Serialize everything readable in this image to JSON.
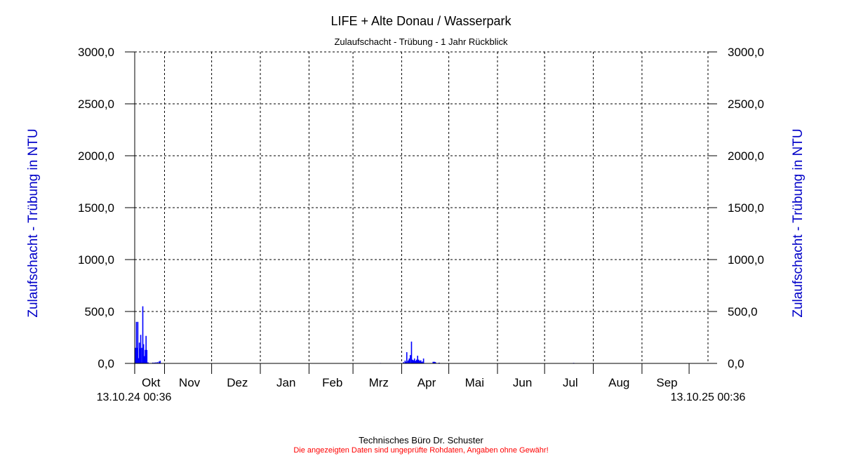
{
  "chart_data": {
    "type": "bar",
    "title": "LIFE + Alte Donau / Wasserpark",
    "subtitle": "Zulaufschacht - Trübung - 1 Jahr Rückblick",
    "ylabel": "Zulaufschacht - Trübung in NTU",
    "ylabel_right": "Zulaufschacht - Trübung in NTU",
    "ylim": [
      0,
      3000
    ],
    "yticks": [
      "0,0",
      "500,0",
      "1000,0",
      "1500,0",
      "2000,0",
      "2500,0",
      "3000,0"
    ],
    "ytick_values": [
      0,
      500,
      1000,
      1500,
      2000,
      2500,
      3000
    ],
    "xlim": [
      "2024-10-13T00:36",
      "2025-10-13T00:36"
    ],
    "x_start_label": "13.10.24 00:36",
    "x_end_label": "13.10.25 00:36",
    "months": [
      {
        "label": "Okt",
        "start": "2024-10-13",
        "end": "2024-11-01"
      },
      {
        "label": "Nov",
        "start": "2024-11-01",
        "end": "2024-12-01"
      },
      {
        "label": "Dez",
        "start": "2024-12-01",
        "end": "2025-01-01"
      },
      {
        "label": "Jan",
        "start": "2025-01-01",
        "end": "2025-02-01"
      },
      {
        "label": "Feb",
        "start": "2025-02-01",
        "end": "2025-03-01"
      },
      {
        "label": "Mrz",
        "start": "2025-03-01",
        "end": "2025-04-01"
      },
      {
        "label": "Apr",
        "start": "2025-04-01",
        "end": "2025-05-01"
      },
      {
        "label": "Mai",
        "start": "2025-05-01",
        "end": "2025-06-01"
      },
      {
        "label": "Jun",
        "start": "2025-06-01",
        "end": "2025-07-01"
      },
      {
        "label": "Jul",
        "start": "2025-07-01",
        "end": "2025-08-01"
      },
      {
        "label": "Aug",
        "start": "2025-08-01",
        "end": "2025-09-01"
      },
      {
        "label": "Sep",
        "start": "2025-09-01",
        "end": "2025-10-01"
      }
    ],
    "grid": true,
    "series_color": "#0000FF",
    "axis_title_color": "#0000C8",
    "points": [
      [
        "2024-10-13T06:00",
        150
      ],
      [
        "2024-10-13T18:00",
        150
      ],
      [
        "2024-10-14T03:00",
        400
      ],
      [
        "2024-10-14T15:00",
        150
      ],
      [
        "2024-10-15T00:00",
        400
      ],
      [
        "2024-10-15T12:00",
        50
      ],
      [
        "2024-10-16T00:00",
        200
      ],
      [
        "2024-10-16T10:00",
        145
      ],
      [
        "2024-10-16T20:00",
        275
      ],
      [
        "2024-10-17T12:00",
        150
      ],
      [
        "2024-10-18T04:00",
        550
      ],
      [
        "2024-10-18T16:00",
        185
      ],
      [
        "2024-10-19T04:00",
        70
      ],
      [
        "2024-10-19T18:00",
        130
      ],
      [
        "2024-10-20T06:00",
        265
      ],
      [
        "2024-10-20T18:00",
        130
      ],
      [
        "2024-10-21T12:00",
        10
      ],
      [
        "2024-10-24T12:00",
        8
      ],
      [
        "2024-10-25T12:00",
        8
      ],
      [
        "2024-10-26T12:00",
        10
      ],
      [
        "2024-10-27T12:00",
        12
      ],
      [
        "2024-10-28T12:00",
        18
      ],
      [
        "2024-10-29T06:00",
        25
      ],
      [
        "2025-03-18T12:00",
        4
      ],
      [
        "2025-04-02T06:00",
        12
      ],
      [
        "2025-04-03T04:00",
        27
      ],
      [
        "2025-04-03T14:00",
        15
      ],
      [
        "2025-04-04T06:00",
        108
      ],
      [
        "2025-04-05T00:00",
        20
      ],
      [
        "2025-04-05T06:00",
        30
      ],
      [
        "2025-04-05T20:00",
        47
      ],
      [
        "2025-04-06T12:00",
        80
      ],
      [
        "2025-04-07T06:00",
        210
      ],
      [
        "2025-04-07T20:00",
        36
      ],
      [
        "2025-04-08T12:00",
        30
      ],
      [
        "2025-04-09T04:00",
        47
      ],
      [
        "2025-04-09T20:00",
        25
      ],
      [
        "2025-04-10T12:00",
        36
      ],
      [
        "2025-04-11T04:00",
        74
      ],
      [
        "2025-04-11T20:00",
        36
      ],
      [
        "2025-04-12T12:00",
        25
      ],
      [
        "2025-04-13T04:00",
        30
      ],
      [
        "2025-04-13T16:00",
        14
      ],
      [
        "2025-04-14T04:00",
        18
      ],
      [
        "2025-04-14T16:00",
        7
      ],
      [
        "2025-04-14T22:00",
        47
      ],
      [
        "2025-04-21T00:00",
        15
      ],
      [
        "2025-04-21T12:00",
        15
      ],
      [
        "2025-04-22T00:00",
        15
      ],
      [
        "2025-04-22T12:00",
        12
      ],
      [
        "2025-04-24T20:00",
        7
      ],
      [
        "2025-07-19T12:00",
        5
      ]
    ]
  },
  "footer": {
    "company": "Technisches Büro Dr. Schuster",
    "disclaimer": "Die angezeigten Daten sind ungeprüfte Rohdaten, Angaben ohne Gewähr!",
    "disclaimer_color": "#FF0000"
  }
}
